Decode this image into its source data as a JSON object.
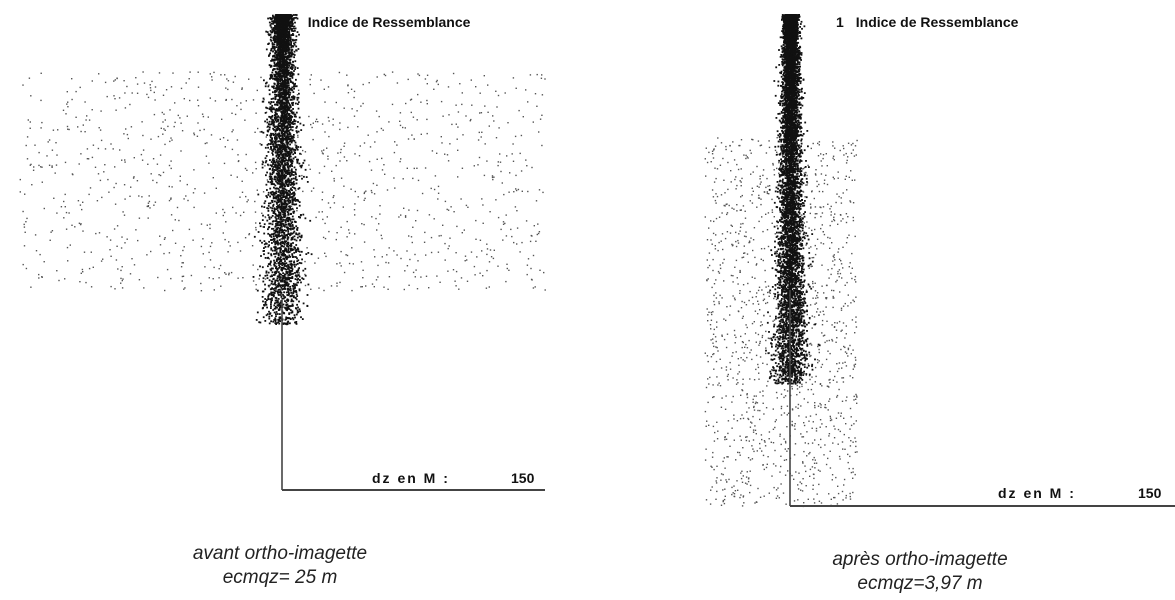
{
  "chart_data": [
    {
      "type": "scatter",
      "y_tick_label": "1",
      "ylabel": "Indice de Ressemblance",
      "xlabel": "dz en M :",
      "x_tick_max": "150",
      "ylim": [
        0,
        1
      ],
      "grid": false,
      "caption_line1": "avant ortho-imagette",
      "caption_line2": "ecmqz= 25 m",
      "distribution": {
        "core_n": 4200,
        "core_spread": 6,
        "noise_n": 1100,
        "noise_xrange": [
          -150,
          150
        ],
        "noise_yrange": [
          0.42,
          0.88
        ]
      }
    },
    {
      "type": "scatter",
      "y_tick_label": "1",
      "ylabel": "Indice de Ressemblance",
      "xlabel": "dz en M :",
      "x_tick_max": "150",
      "ylim": [
        0,
        1
      ],
      "grid": false,
      "caption_line1": "après ortho-imagette",
      "caption_line2": "ecmqz=3,97 m",
      "distribution": {
        "core_n": 6500,
        "core_spread": 4,
        "noise_n": 1400,
        "noise_xrange": [
          -45,
          35
        ],
        "noise_yrange": [
          0.0,
          0.75
        ]
      }
    }
  ]
}
